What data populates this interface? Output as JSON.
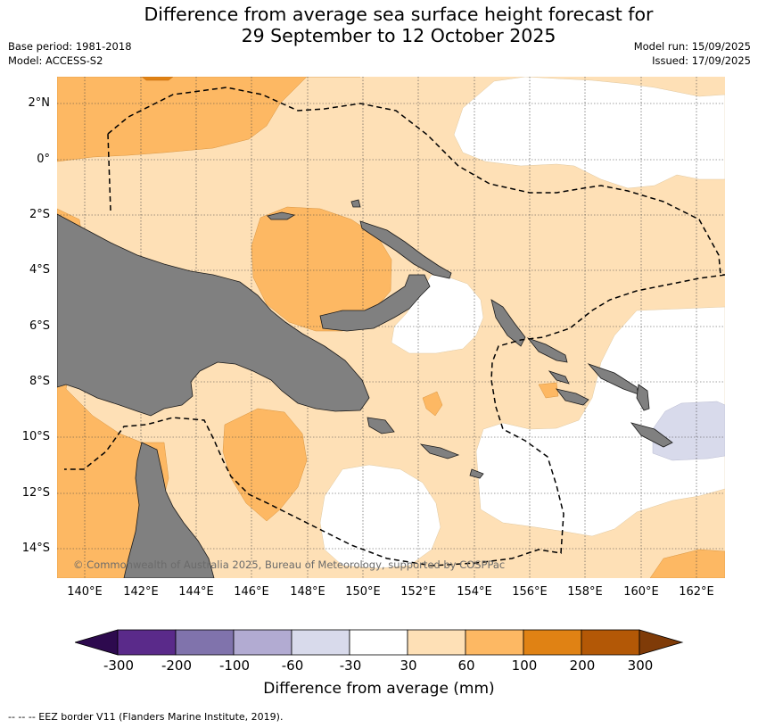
{
  "title_line1": "Difference from average sea surface height forecast for",
  "title_line2": "29 September to 12 October 2025",
  "base_period": "Base period: 1981-2018",
  "model": "Model: ACCESS-S2",
  "model_run": "Model run: 15/09/2025",
  "issued": "Issued: 17/09/2025",
  "latitude_labels": [
    "2°N",
    "0°",
    "2°S",
    "4°S",
    "6°S",
    "8°S",
    "10°S",
    "12°S",
    "14°S"
  ],
  "longitude_labels": [
    "140°E",
    "142°E",
    "144°E",
    "146°E",
    "148°E",
    "150°E",
    "152°E",
    "154°E",
    "156°E",
    "158°E",
    "160°E",
    "162°E"
  ],
  "copyright": "© Commonwealth of Australia 2025, Bureau of Meteorology, supported by COSPPac",
  "legend": {
    "title": "Difference from average (mm)",
    "ticks": [
      "-300",
      "-200",
      "-100",
      "-60",
      "-30",
      "30",
      "60",
      "100",
      "200",
      "300"
    ],
    "colors": [
      "#2d0a4e",
      "#5a2a8a",
      "#8073ac",
      "#b2abd2",
      "#d8daeb",
      "#ffffff",
      "#fee0b6",
      "#fdb863",
      "#e08214",
      "#b35806",
      "#7f3b08"
    ]
  },
  "eez_note": "--  --  -- EEZ border V11 (Flanders Marine Institute, 2019)."
}
